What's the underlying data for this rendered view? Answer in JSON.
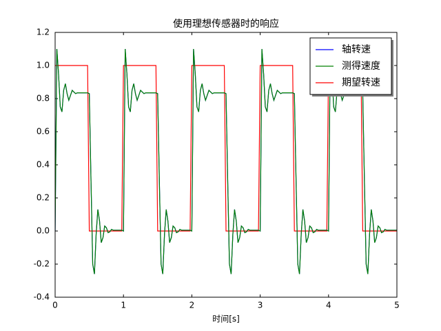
{
  "chart_data": {
    "type": "line",
    "title": "使用理想传感器时的响应",
    "x_label": "时间[s]",
    "x": [
      0,
      0.025,
      0.05,
      0.075,
      0.1,
      0.125,
      0.15,
      0.175,
      0.2,
      0.225,
      0.25,
      0.275,
      0.3,
      0.325,
      0.35,
      0.375,
      0.4,
      0.425,
      0.45,
      0.475,
      0.5,
      0.525,
      0.55,
      0.575,
      0.6,
      0.625,
      0.65,
      0.675,
      0.7,
      0.725,
      0.75,
      0.775,
      0.8,
      0.825,
      0.85,
      0.875,
      0.9,
      0.925,
      0.95,
      0.975,
      1,
      1.025,
      1.05,
      1.075,
      1.1,
      1.125,
      1.15,
      1.175,
      1.2,
      1.225,
      1.25,
      1.275,
      1.3,
      1.325,
      1.35,
      1.375,
      1.4,
      1.425,
      1.45,
      1.475,
      1.5,
      1.525,
      1.55,
      1.575,
      1.6,
      1.625,
      1.65,
      1.675,
      1.7,
      1.725,
      1.75,
      1.775,
      1.8,
      1.825,
      1.85,
      1.875,
      1.9,
      1.925,
      1.95,
      1.975,
      2,
      2.025,
      2.05,
      2.075,
      2.1,
      2.125,
      2.15,
      2.175,
      2.2,
      2.225,
      2.25,
      2.275,
      2.3,
      2.325,
      2.35,
      2.375,
      2.4,
      2.425,
      2.45,
      2.475,
      2.5,
      2.525,
      2.55,
      2.575,
      2.6,
      2.625,
      2.65,
      2.675,
      2.7,
      2.725,
      2.75,
      2.775,
      2.8,
      2.825,
      2.85,
      2.875,
      2.9,
      2.925,
      2.95,
      2.975,
      3,
      3.025,
      3.05,
      3.075,
      3.1,
      3.125,
      3.15,
      3.175,
      3.2,
      3.225,
      3.25,
      3.275,
      3.3,
      3.325,
      3.35,
      3.375,
      3.4,
      3.425,
      3.45,
      3.475,
      3.5,
      3.525,
      3.55,
      3.575,
      3.6,
      3.625,
      3.65,
      3.675,
      3.7,
      3.725,
      3.75,
      3.775,
      3.8,
      3.825,
      3.85,
      3.875,
      3.9,
      3.925,
      3.95,
      3.975,
      4,
      4.025,
      4.05,
      4.075,
      4.1,
      4.125,
      4.15,
      4.175,
      4.2,
      4.225,
      4.25,
      4.275,
      4.3,
      4.325,
      4.35,
      4.375,
      4.4,
      4.425,
      4.45,
      4.475,
      4.5,
      4.525,
      4.55,
      4.575,
      4.6,
      4.625,
      4.65,
      4.675,
      4.7,
      4.725,
      4.75,
      4.775,
      4.8,
      4.825,
      4.85,
      4.875,
      4.9,
      4.925,
      4.95,
      4.975,
      5
    ],
    "series": [
      {
        "name": "轴转速",
        "color": "#0000ff",
        "values": [
          0.0,
          1.1,
          0.95,
          0.75,
          0.72,
          0.85,
          0.89,
          0.83,
          0.79,
          0.82,
          0.85,
          0.84,
          0.83,
          0.835,
          0.835,
          0.835,
          0.835,
          0.835,
          0.835,
          0.835,
          0.83,
          0.3,
          -0.2,
          -0.26,
          -0.02,
          0.13,
          0.06,
          -0.07,
          -0.04,
          0.03,
          0.02,
          -0.01,
          -0.005,
          0.01,
          0.005,
          0.005,
          0.005,
          0.005,
          0.005,
          0.005,
          0.0,
          1.1,
          0.95,
          0.75,
          0.72,
          0.85,
          0.89,
          0.83,
          0.79,
          0.82,
          0.85,
          0.84,
          0.83,
          0.835,
          0.835,
          0.835,
          0.835,
          0.835,
          0.835,
          0.835,
          0.83,
          0.3,
          -0.2,
          -0.26,
          -0.02,
          0.13,
          0.06,
          -0.07,
          -0.04,
          0.03,
          0.02,
          -0.01,
          -0.005,
          0.01,
          0.005,
          0.005,
          0.005,
          0.005,
          0.005,
          0.005,
          0.0,
          1.1,
          0.95,
          0.75,
          0.72,
          0.85,
          0.89,
          0.83,
          0.79,
          0.82,
          0.85,
          0.84,
          0.83,
          0.835,
          0.835,
          0.835,
          0.835,
          0.835,
          0.835,
          0.835,
          0.83,
          0.3,
          -0.2,
          -0.26,
          -0.02,
          0.13,
          0.06,
          -0.07,
          -0.04,
          0.03,
          0.02,
          -0.01,
          -0.005,
          0.01,
          0.005,
          0.005,
          0.005,
          0.005,
          0.005,
          0.005,
          0.0,
          1.1,
          0.95,
          0.75,
          0.72,
          0.85,
          0.89,
          0.83,
          0.79,
          0.82,
          0.85,
          0.84,
          0.83,
          0.835,
          0.835,
          0.835,
          0.835,
          0.835,
          0.835,
          0.835,
          0.83,
          0.3,
          -0.2,
          -0.26,
          -0.02,
          0.13,
          0.06,
          -0.07,
          -0.04,
          0.03,
          0.02,
          -0.01,
          -0.005,
          0.01,
          0.005,
          0.005,
          0.005,
          0.005,
          0.005,
          0.005,
          0.0,
          1.1,
          0.95,
          0.75,
          0.72,
          0.85,
          0.89,
          0.83,
          0.79,
          0.82,
          0.85,
          0.84,
          0.83,
          0.835,
          0.835,
          0.835,
          0.835,
          0.835,
          0.835,
          0.835,
          0.83,
          0.3,
          -0.2,
          -0.26,
          -0.02,
          0.13,
          0.06,
          -0.07,
          -0.04,
          0.03,
          0.02,
          -0.01,
          -0.005,
          0.01,
          0.005,
          0.005,
          0.005,
          0.005,
          0.005,
          0.005,
          0.005
        ]
      },
      {
        "name": "测得速度",
        "color": "#008000",
        "values": [
          0.0,
          1.1,
          0.95,
          0.75,
          0.72,
          0.85,
          0.89,
          0.83,
          0.79,
          0.82,
          0.85,
          0.84,
          0.83,
          0.835,
          0.835,
          0.835,
          0.835,
          0.835,
          0.835,
          0.835,
          0.83,
          0.3,
          -0.2,
          -0.26,
          -0.02,
          0.13,
          0.06,
          -0.07,
          -0.04,
          0.03,
          0.02,
          -0.01,
          -0.005,
          0.01,
          0.005,
          0.005,
          0.005,
          0.005,
          0.005,
          0.005,
          0.0,
          1.1,
          0.95,
          0.75,
          0.72,
          0.85,
          0.89,
          0.83,
          0.79,
          0.82,
          0.85,
          0.84,
          0.83,
          0.835,
          0.835,
          0.835,
          0.835,
          0.835,
          0.835,
          0.835,
          0.83,
          0.3,
          -0.2,
          -0.26,
          -0.02,
          0.13,
          0.06,
          -0.07,
          -0.04,
          0.03,
          0.02,
          -0.01,
          -0.005,
          0.01,
          0.005,
          0.005,
          0.005,
          0.005,
          0.005,
          0.005,
          0.0,
          1.1,
          0.95,
          0.75,
          0.72,
          0.85,
          0.89,
          0.83,
          0.79,
          0.82,
          0.85,
          0.84,
          0.83,
          0.835,
          0.835,
          0.835,
          0.835,
          0.835,
          0.835,
          0.835,
          0.83,
          0.3,
          -0.2,
          -0.26,
          -0.02,
          0.13,
          0.06,
          -0.07,
          -0.04,
          0.03,
          0.02,
          -0.01,
          -0.005,
          0.01,
          0.005,
          0.005,
          0.005,
          0.005,
          0.005,
          0.005,
          0.0,
          1.1,
          0.95,
          0.75,
          0.72,
          0.85,
          0.89,
          0.83,
          0.79,
          0.82,
          0.85,
          0.84,
          0.83,
          0.835,
          0.835,
          0.835,
          0.835,
          0.835,
          0.835,
          0.835,
          0.83,
          0.3,
          -0.2,
          -0.26,
          -0.02,
          0.13,
          0.06,
          -0.07,
          -0.04,
          0.03,
          0.02,
          -0.01,
          -0.005,
          0.01,
          0.005,
          0.005,
          0.005,
          0.005,
          0.005,
          0.005,
          0.0,
          1.1,
          0.95,
          0.75,
          0.72,
          0.85,
          0.89,
          0.83,
          0.79,
          0.82,
          0.85,
          0.84,
          0.83,
          0.835,
          0.835,
          0.835,
          0.835,
          0.835,
          0.835,
          0.835,
          0.83,
          0.3,
          -0.2,
          -0.26,
          -0.02,
          0.13,
          0.06,
          -0.07,
          -0.04,
          0.03,
          0.02,
          -0.01,
          -0.005,
          0.01,
          0.005,
          0.005,
          0.005,
          0.005,
          0.005,
          0.005,
          0.005
        ]
      },
      {
        "name": "期望转速",
        "color": "#ff0000",
        "values": [
          1,
          1,
          1,
          1,
          1,
          1,
          1,
          1,
          1,
          1,
          1,
          1,
          1,
          1,
          1,
          1,
          1,
          1,
          1,
          1,
          0,
          0,
          0,
          0,
          0,
          0,
          0,
          0,
          0,
          0,
          0,
          0,
          0,
          0,
          0,
          0,
          0,
          0,
          0,
          0,
          1,
          1,
          1,
          1,
          1,
          1,
          1,
          1,
          1,
          1,
          1,
          1,
          1,
          1,
          1,
          1,
          1,
          1,
          1,
          1,
          0,
          0,
          0,
          0,
          0,
          0,
          0,
          0,
          0,
          0,
          0,
          0,
          0,
          0,
          0,
          0,
          0,
          0,
          0,
          0,
          1,
          1,
          1,
          1,
          1,
          1,
          1,
          1,
          1,
          1,
          1,
          1,
          1,
          1,
          1,
          1,
          1,
          1,
          1,
          1,
          0,
          0,
          0,
          0,
          0,
          0,
          0,
          0,
          0,
          0,
          0,
          0,
          0,
          0,
          0,
          0,
          0,
          0,
          0,
          0,
          1,
          1,
          1,
          1,
          1,
          1,
          1,
          1,
          1,
          1,
          1,
          1,
          1,
          1,
          1,
          1,
          1,
          1,
          1,
          1,
          0,
          0,
          0,
          0,
          0,
          0,
          0,
          0,
          0,
          0,
          0,
          0,
          0,
          0,
          0,
          0,
          0,
          0,
          0,
          0,
          1,
          1,
          1,
          1,
          1,
          1,
          1,
          1,
          1,
          1,
          1,
          1,
          1,
          1,
          1,
          1,
          1,
          1,
          1,
          1,
          0,
          0,
          0,
          0,
          0,
          0,
          0,
          0,
          0,
          0,
          0,
          0,
          0,
          0,
          0,
          0,
          0,
          0,
          0,
          0,
          0
        ]
      }
    ],
    "xlim": [
      0,
      5
    ],
    "xticks": [
      0,
      1,
      2,
      3,
      4,
      5
    ],
    "ylim": [
      -0.4,
      1.2
    ],
    "yticks": [
      -0.4,
      -0.2,
      {
        "value": 0,
        "label": "0.0"
      },
      0.2,
      0.4,
      0.6,
      0.8,
      {
        "value": 1,
        "label": "1.0"
      },
      1.2
    ],
    "legend": "upper right"
  }
}
